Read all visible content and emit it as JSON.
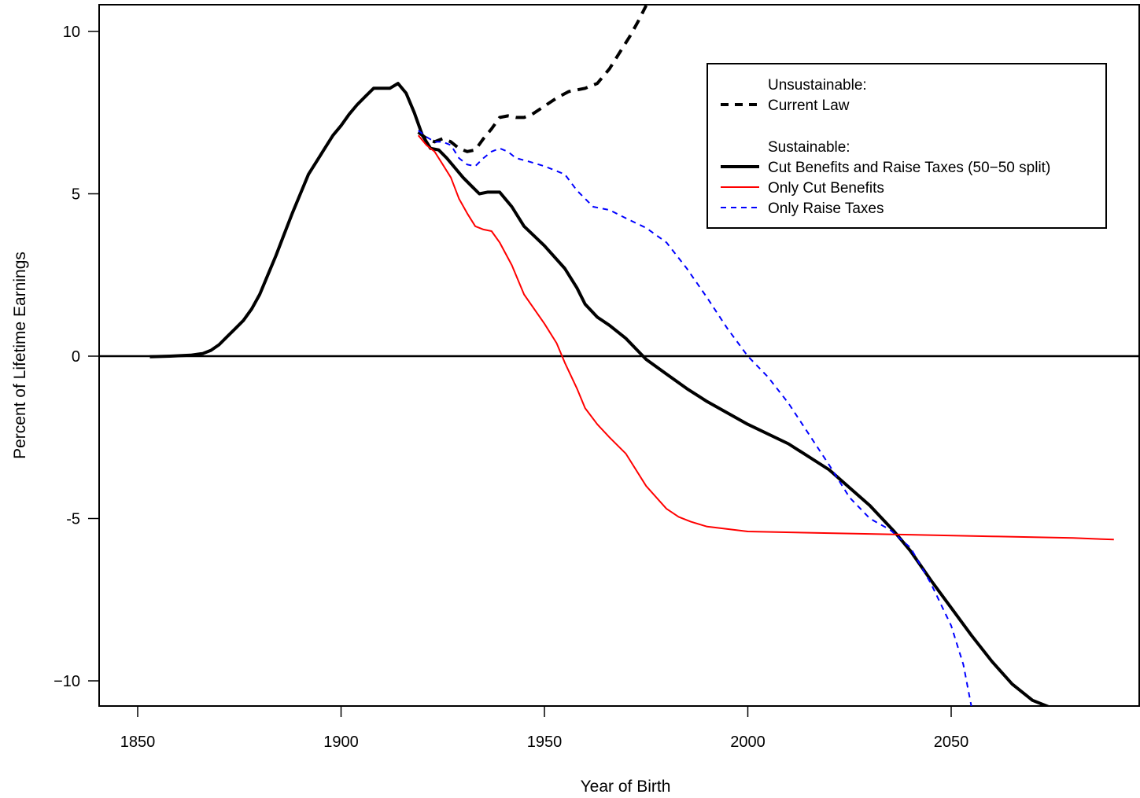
{
  "chart_data": {
    "type": "line",
    "title": "",
    "xlabel": "Year of Birth",
    "ylabel": "Percent of Lifetime Earnings",
    "xlim": [
      1840.5,
      2097
    ],
    "ylim": [
      -10.8,
      10.8
    ],
    "xticks": [
      1850,
      1900,
      1950,
      2000,
      2050
    ],
    "xtick_labels": [
      "1850",
      "1900",
      "1950",
      "2000",
      "2050"
    ],
    "yticks": [
      10,
      5,
      0,
      -5,
      -10
    ],
    "ytick_labels": [
      "10",
      "5",
      "0",
      "-5",
      "−10"
    ],
    "grid": false,
    "reference_line": {
      "y": 0,
      "color": "#000000"
    },
    "legend": {
      "placement": "top-right",
      "group1_header": "Unsustainable:",
      "group2_header": "Sustainable:",
      "entries": [
        {
          "label": "Current Law",
          "series_index": 0
        },
        {
          "label": "Cut Benefits and Raise Taxes (50−50 split)",
          "series_index": 1
        },
        {
          "label": "Only Cut Benefits",
          "series_index": 2
        },
        {
          "label": "Only Raise Taxes",
          "series_index": 3
        }
      ]
    },
    "series": [
      {
        "name": "Current Law",
        "color": "#000000",
        "dash": "dashed",
        "width": 4,
        "x": [
          1919,
          1921,
          1923,
          1925,
          1927,
          1929,
          1931,
          1933,
          1935,
          1937,
          1939,
          1941,
          1943,
          1945,
          1947,
          1950,
          1953,
          1956,
          1960,
          1963,
          1966,
          1969,
          1971,
          1973,
          1975
        ],
        "y": [
          6.9,
          6.7,
          6.6,
          6.7,
          6.6,
          6.4,
          6.3,
          6.35,
          6.7,
          7.0,
          7.35,
          7.4,
          7.35,
          7.35,
          7.45,
          7.7,
          7.95,
          8.15,
          8.25,
          8.4,
          8.85,
          9.45,
          9.85,
          10.3,
          10.8
        ]
      },
      {
        "name": "Cut Benefits and Raise Taxes (50−50 split)",
        "color": "#000000",
        "dash": "solid",
        "width": 4,
        "x": [
          1853,
          1858,
          1863,
          1866,
          1868,
          1870,
          1872,
          1874,
          1876,
          1878,
          1880,
          1882,
          1884,
          1886,
          1888,
          1890,
          1892,
          1894,
          1896,
          1898,
          1900,
          1902,
          1904,
          1906,
          1908,
          1910,
          1912,
          1914,
          1916,
          1918,
          1920,
          1922,
          1924,
          1926,
          1928,
          1930,
          1932,
          1934,
          1936,
          1939,
          1942,
          1945,
          1950,
          1955,
          1958,
          1960,
          1963,
          1966,
          1970,
          1975,
          1980,
          1985,
          1990,
          2000,
          2010,
          2020,
          2030,
          2036,
          2040,
          2045,
          2050,
          2055,
          2060,
          2065,
          2070,
          2075
        ],
        "y": [
          -0.02,
          0.0,
          0.03,
          0.08,
          0.18,
          0.35,
          0.6,
          0.85,
          1.1,
          1.45,
          1.9,
          2.5,
          3.1,
          3.75,
          4.4,
          5.0,
          5.6,
          6.0,
          6.4,
          6.8,
          7.1,
          7.45,
          7.75,
          8.0,
          8.25,
          8.25,
          8.25,
          8.4,
          8.1,
          7.5,
          6.8,
          6.4,
          6.35,
          6.1,
          5.8,
          5.5,
          5.25,
          5.0,
          5.05,
          5.05,
          4.6,
          4.0,
          3.4,
          2.7,
          2.1,
          1.6,
          1.2,
          0.95,
          0.55,
          -0.1,
          -0.55,
          -1.0,
          -1.4,
          -2.1,
          -2.7,
          -3.5,
          -4.6,
          -5.4,
          -6.0,
          -6.9,
          -7.75,
          -8.6,
          -9.4,
          -10.1,
          -10.6,
          -10.85
        ]
      },
      {
        "name": "Only Cut Benefits",
        "color": "#ff0000",
        "dash": "solid",
        "width": 2,
        "x": [
          1919,
          1921,
          1923,
          1925,
          1927,
          1929,
          1931,
          1933,
          1935,
          1937,
          1939,
          1942,
          1945,
          1950,
          1953,
          1955,
          1958,
          1960,
          1963,
          1966,
          1970,
          1975,
          1980,
          1983,
          1986,
          1990,
          2000,
          2020,
          2040,
          2060,
          2080,
          2090
        ],
        "y": [
          6.8,
          6.5,
          6.3,
          5.9,
          5.5,
          4.85,
          4.4,
          4.0,
          3.9,
          3.85,
          3.5,
          2.8,
          1.9,
          1.0,
          0.4,
          -0.2,
          -1.0,
          -1.6,
          -2.1,
          -2.5,
          -3.0,
          -4.0,
          -4.7,
          -4.95,
          -5.1,
          -5.25,
          -5.4,
          -5.45,
          -5.5,
          -5.55,
          -5.6,
          -5.65
        ]
      },
      {
        "name": "Only Raise Taxes",
        "color": "#0000ff",
        "dash": "dashed",
        "width": 2,
        "x": [
          1919,
          1921,
          1923,
          1925,
          1927,
          1929,
          1931,
          1933,
          1935,
          1937,
          1939,
          1941,
          1943,
          1946,
          1950,
          1955,
          1958,
          1962,
          1966,
          1970,
          1975,
          1980,
          1985,
          1990,
          1995,
          2000,
          2005,
          2010,
          2015,
          2020,
          2025,
          2030,
          2035,
          2040,
          2045,
          2050,
          2053,
          2055
        ],
        "y": [
          6.95,
          6.75,
          6.6,
          6.6,
          6.5,
          6.1,
          5.9,
          5.85,
          6.1,
          6.3,
          6.4,
          6.3,
          6.1,
          6.0,
          5.85,
          5.6,
          5.1,
          4.6,
          4.5,
          4.25,
          3.95,
          3.5,
          2.7,
          1.8,
          0.85,
          0.0,
          -0.65,
          -1.45,
          -2.4,
          -3.35,
          -4.35,
          -5.0,
          -5.35,
          -5.9,
          -7.0,
          -8.3,
          -9.5,
          -10.8
        ]
      }
    ]
  }
}
